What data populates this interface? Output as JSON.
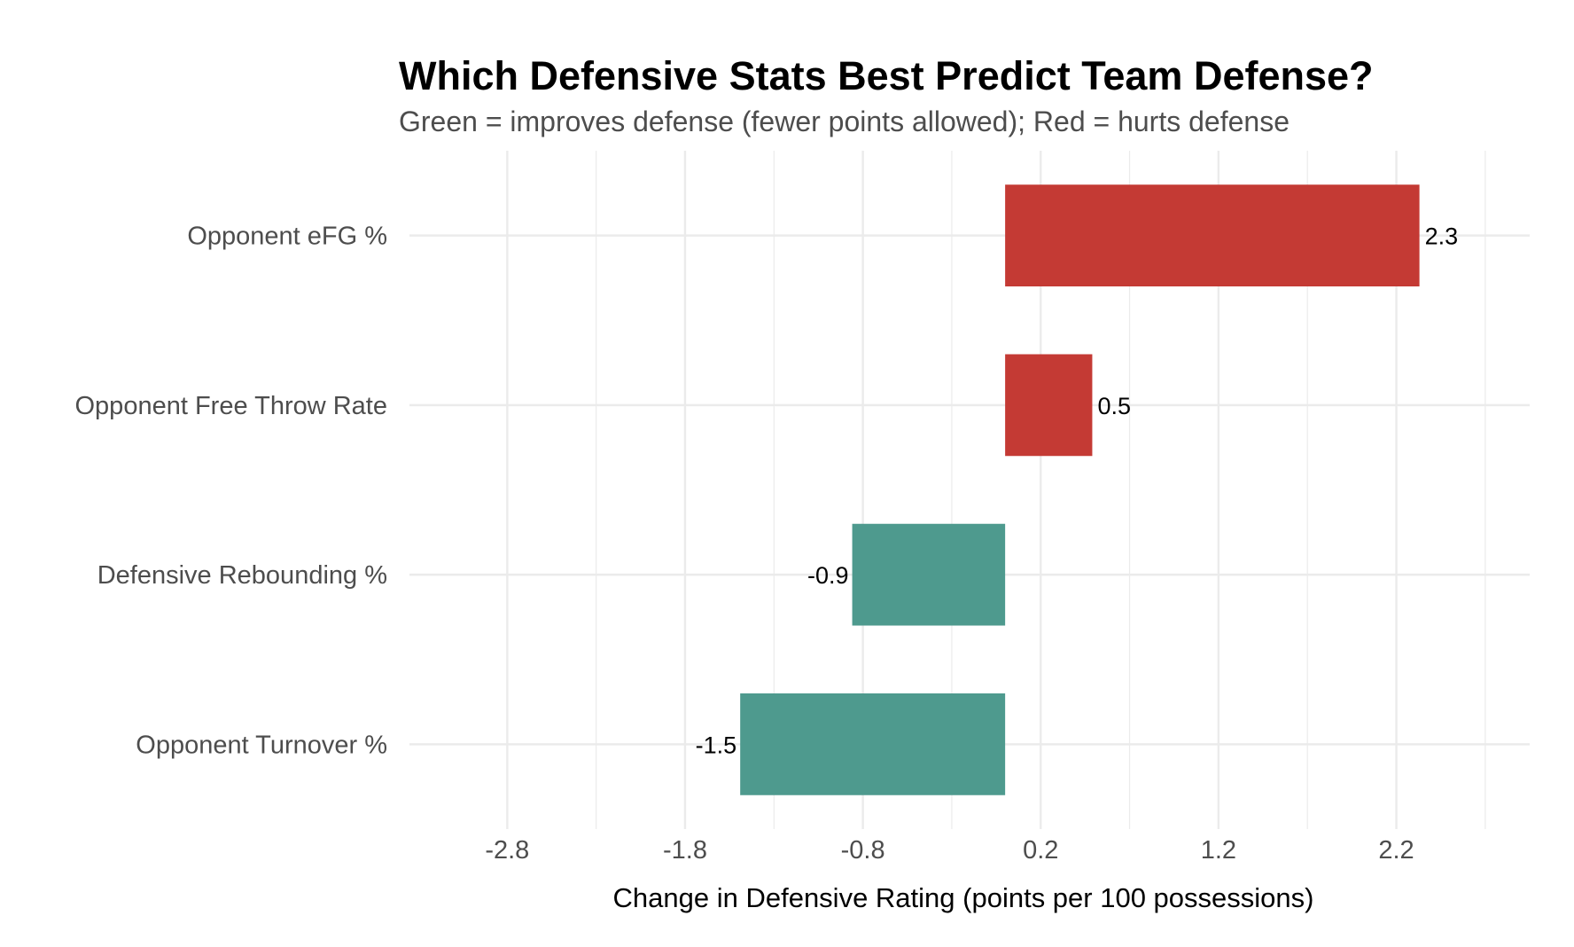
{
  "chart_data": {
    "type": "bar",
    "orientation": "horizontal",
    "title": "Which Defensive Stats Best Predict Team Defense?",
    "subtitle": "Green = improves defense (fewer points allowed); Red = hurts defense",
    "xlabel": "Change in Defensive Rating (points per 100 possessions)",
    "ylabel": "",
    "xlim": [
      -3.35,
      2.95
    ],
    "x_ticks": [
      -2.8,
      -1.8,
      -0.8,
      0.2,
      1.2,
      2.2
    ],
    "x_tick_labels": [
      "-2.8",
      "-1.8",
      "-0.8",
      "0.2",
      "1.2",
      "2.2"
    ],
    "baseline": 0,
    "grid": true,
    "legend": "none",
    "categories": [
      "Opponent eFG %",
      "Opponent Free Throw Rate",
      "Defensive Rebounding %",
      "Opponent Turnover %"
    ],
    "values": [
      2.33,
      0.49,
      -0.86,
      -1.49
    ],
    "value_labels": [
      "2.3",
      "0.5",
      "-0.9",
      "-1.5"
    ],
    "colors": {
      "positive": "#c43a34",
      "negative": "#4e9a8e"
    }
  }
}
